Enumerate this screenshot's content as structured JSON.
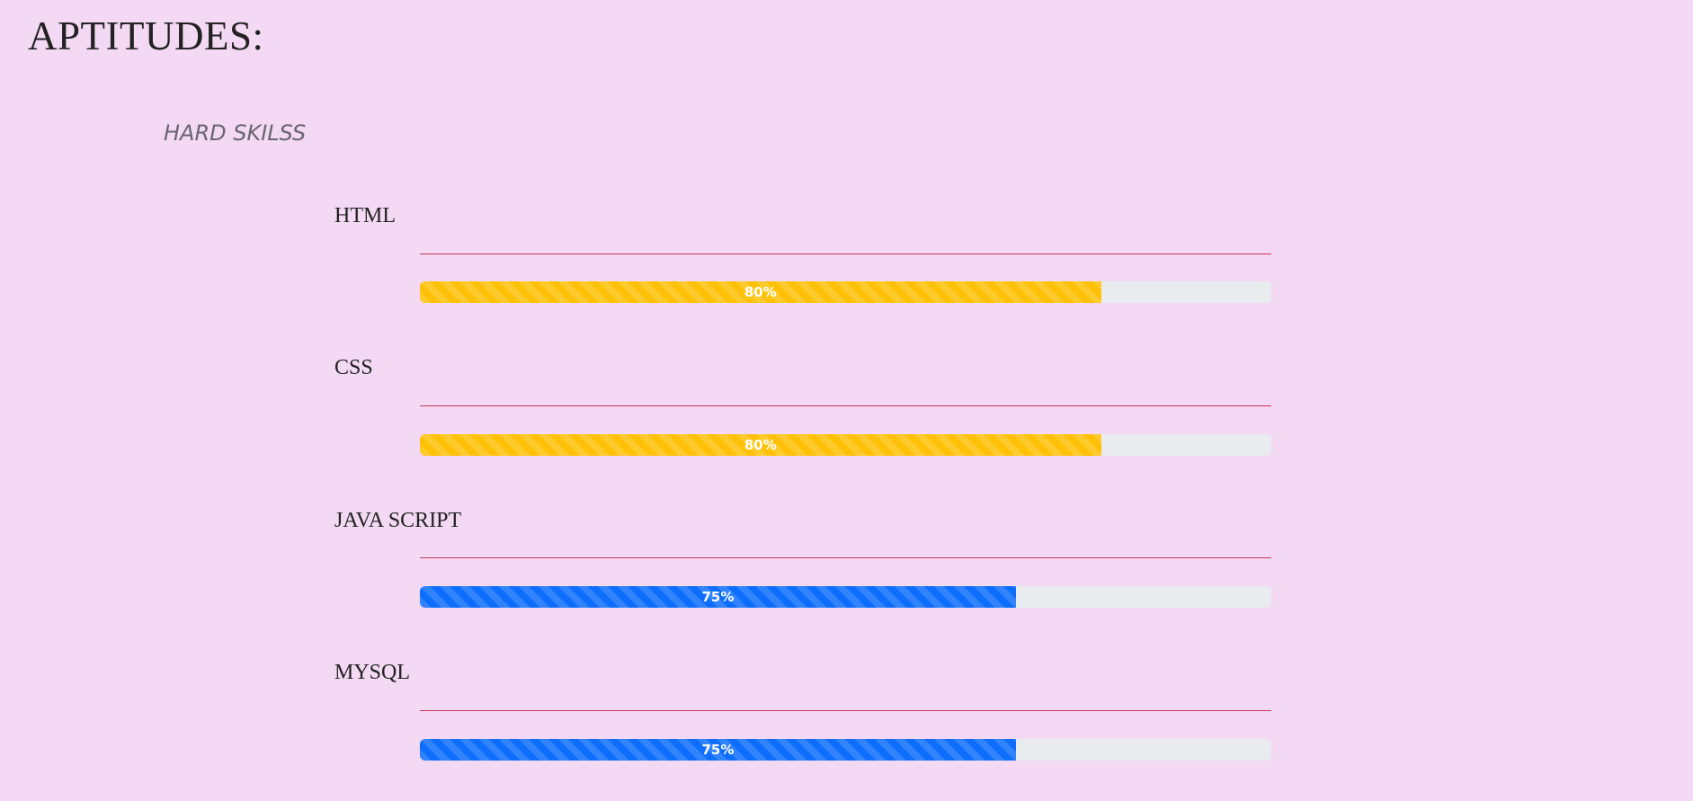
{
  "page": {
    "title": "APTITUDES:"
  },
  "section": {
    "title": "HARD SKILSS"
  },
  "skills": [
    {
      "name": "HTML",
      "label": "80%",
      "percent": 80,
      "color": "#ffc107"
    },
    {
      "name": "CSS",
      "label": "80%",
      "percent": 80,
      "color": "#ffc107"
    },
    {
      "name": "JAVA SCRIPT",
      "label": "75%",
      "percent": 75,
      "color": "#0d6efd"
    },
    {
      "name": "MYSQL",
      "label": "75%",
      "percent": 75,
      "color": "#0d6efd"
    }
  ],
  "colors": {
    "background": "#f3d9f3",
    "rule": "#c7375a",
    "track": "#e9ecef"
  }
}
